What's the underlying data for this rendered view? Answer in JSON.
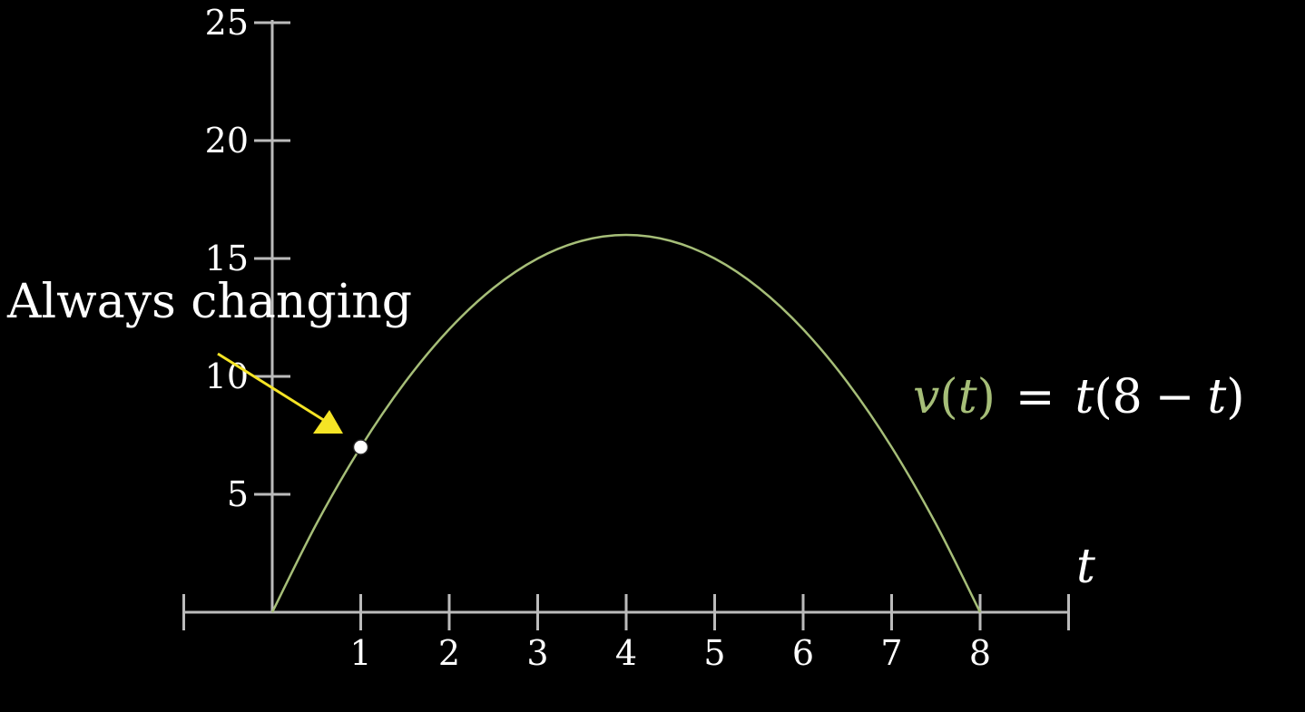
{
  "chart_data": {
    "type": "line",
    "x": [
      0,
      0.5,
      1,
      1.5,
      2,
      2.5,
      3,
      3.5,
      4,
      4.5,
      5,
      5.5,
      6,
      6.5,
      7,
      7.5,
      8
    ],
    "series": [
      {
        "values": [
          0,
          3.75,
          7,
          9.75,
          12,
          13.75,
          15,
          15.75,
          16,
          15.75,
          15,
          13.75,
          12,
          9.75,
          7,
          3.75,
          0
        ]
      }
    ],
    "xlim": [
      -1,
      9
    ],
    "ylim": [
      0,
      25
    ],
    "x_ticks": [
      "1",
      "2",
      "3",
      "4",
      "5",
      "6",
      "7",
      "8"
    ],
    "y_ticks": [
      "5",
      "10",
      "15",
      "20",
      "25"
    ],
    "xlabel": "t",
    "ylabel": "",
    "grid": false,
    "highlight_point": {
      "x": 1,
      "y": 7
    },
    "annotation": {
      "text": "Always changing",
      "arrow_color": "#F5E425"
    },
    "equation": {
      "lhs_v": "v",
      "lhs_open": "(",
      "lhs_t": "t",
      "lhs_close": ")",
      "equals": "=",
      "rhs_t1": "t",
      "rhs_open": "(",
      "rhs_8": "8",
      "rhs_minus": "−",
      "rhs_t2": "t",
      "rhs_close": ")"
    },
    "colors": {
      "background": "#000000",
      "axis": "#BBBBBB",
      "curve": "#A6BE78",
      "text": "#FFFFFF",
      "point": "#FFFFFF"
    }
  }
}
